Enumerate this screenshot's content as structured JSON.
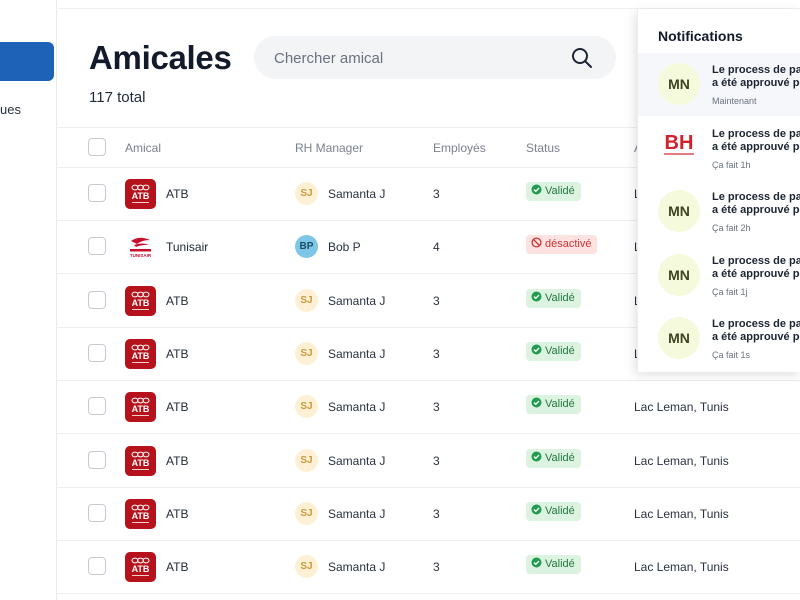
{
  "sidebar": {
    "partial_label": "ues"
  },
  "header": {
    "title": "Amicales",
    "total": "117 total"
  },
  "search": {
    "placeholder": "Chercher amical",
    "value": ""
  },
  "table": {
    "columns": {
      "amical": "Amical",
      "manager": "RH Manager",
      "employees": "Employés",
      "status": "Status",
      "address": "A"
    },
    "rows": [
      {
        "name": "ATB",
        "logo": "atb-logo",
        "manager_initials": "SJ",
        "manager": "Samanta J",
        "employees": "3",
        "status": "Validé",
        "status_type": "valid",
        "address": "L"
      },
      {
        "name": "Tunisair",
        "logo": "tunisair-logo",
        "manager_initials": "BP",
        "manager": "Bob P",
        "employees": "4",
        "status": "désactivé",
        "status_type": "disabled",
        "address": "L"
      },
      {
        "name": "ATB",
        "logo": "atb-logo",
        "manager_initials": "SJ",
        "manager": "Samanta J",
        "employees": "3",
        "status": "Validé",
        "status_type": "valid",
        "address": "L"
      },
      {
        "name": "ATB",
        "logo": "atb-logo",
        "manager_initials": "SJ",
        "manager": "Samanta J",
        "employees": "3",
        "status": "Validé",
        "status_type": "valid",
        "address": "L"
      },
      {
        "name": "ATB",
        "logo": "atb-logo",
        "manager_initials": "SJ",
        "manager": "Samanta J",
        "employees": "3",
        "status": "Validé",
        "status_type": "valid",
        "address": "Lac Leman, Tunis"
      },
      {
        "name": "ATB",
        "logo": "atb-logo",
        "manager_initials": "SJ",
        "manager": "Samanta J",
        "employees": "3",
        "status": "Validé",
        "status_type": "valid",
        "address": "Lac Leman, Tunis"
      },
      {
        "name": "ATB",
        "logo": "atb-logo",
        "manager_initials": "SJ",
        "manager": "Samanta J",
        "employees": "3",
        "status": "Validé",
        "status_type": "valid",
        "address": "Lac Leman, Tunis"
      },
      {
        "name": "ATB",
        "logo": "atb-logo",
        "manager_initials": "SJ",
        "manager": "Samanta J",
        "employees": "3",
        "status": "Validé",
        "status_type": "valid",
        "address": "Lac Leman, Tunis"
      }
    ]
  },
  "notifications": {
    "title": "Notifications",
    "items": [
      {
        "avatar": "MN",
        "line1": "Le process de pai",
        "line2": "a été approuvé po",
        "time": "Maintenant"
      },
      {
        "avatar": "BH",
        "line1": "Le process de pai",
        "line2": "a été approuvé po",
        "time": "Ça fait 1h"
      },
      {
        "avatar": "MN",
        "line1": "Le process de pai",
        "line2": "a été approuvé po",
        "time": "Ça fait 2h"
      },
      {
        "avatar": "MN",
        "line1": "Le process de pai",
        "line2": "a été approuvé po",
        "time": "Ça fait 1j"
      },
      {
        "avatar": "MN",
        "line1": "Le process de pai",
        "line2": "a été approuvé po",
        "time": "Ça fait 1s"
      }
    ]
  },
  "colors": {
    "primary": "#1e62b8",
    "valid_bg": "#dcf3e2",
    "valid_text": "#237a3e",
    "valid_icon": "#1f9d4d",
    "disabled_bg": "#fde2e2",
    "disabled_text": "#d13434",
    "avatar_sj_bg": "#fdf0d5",
    "avatar_sj_text": "#c99a3c",
    "avatar_bp_bg": "#7ec6e8",
    "avatar_bp_text": "#1b4e66",
    "atb_red": "#b5121b",
    "bh_red": "#d4202a"
  }
}
